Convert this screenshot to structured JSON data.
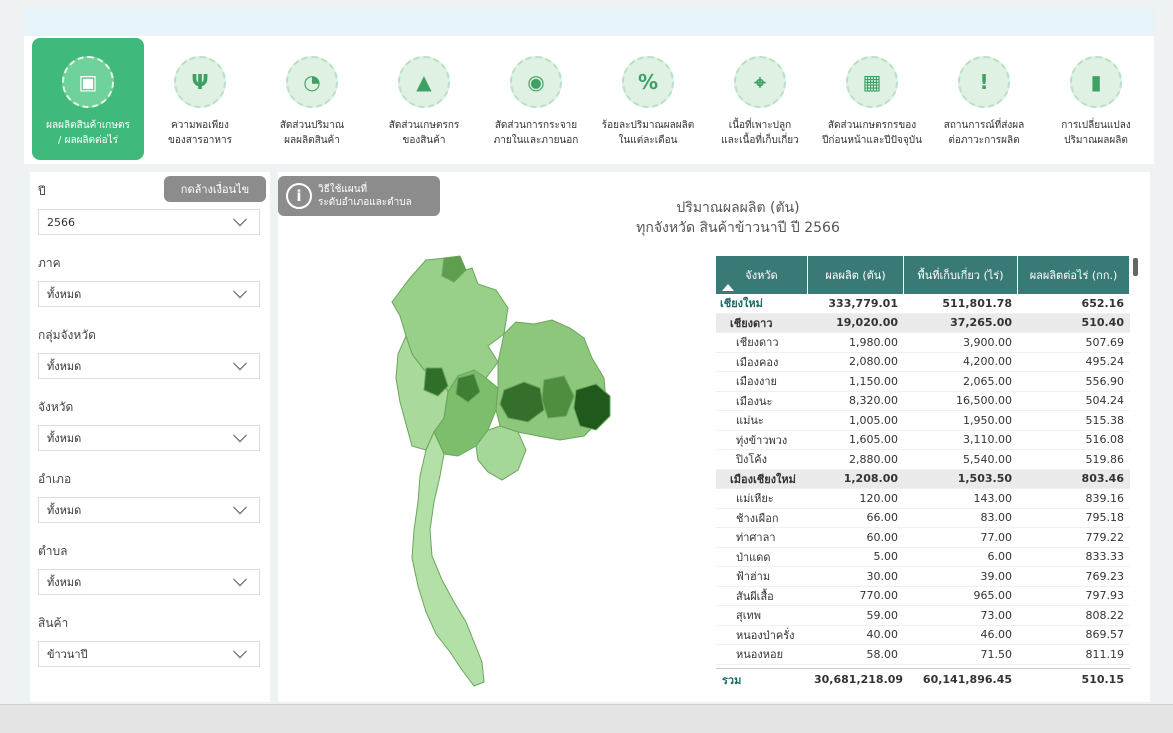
{
  "tabs": [
    {
      "line1": "ผลผลิตสินค้าเกษตร",
      "line2": "/ ผลผลิตต่อไร่",
      "icon": "agri-product-icon",
      "active": true
    },
    {
      "line1": "ความพอเพียง",
      "line2": "ของสารอาหาร",
      "icon": "fork-knife-icon",
      "active": false
    },
    {
      "line1": "สัดส่วนปริมาณ",
      "line2": "ผลผลิตสินค้า",
      "icon": "pie-chart-icon",
      "active": false
    },
    {
      "line1": "สัดส่วนเกษตรกร",
      "line2": "ของสินค้า",
      "icon": "farmer-icon",
      "active": false
    },
    {
      "line1": "สัดส่วนการกระจาย",
      "line2": "ภายในและภายนอก",
      "icon": "globe-pin-icon",
      "active": false
    },
    {
      "line1": "ร้อยละปริมาณผลผลิต",
      "line2": "ในแต่ละเดือน",
      "icon": "percent-icon",
      "active": false
    },
    {
      "line1": "เนื้อที่เพาะปลูก",
      "line2": "และเนื้อที่เก็บเกี่ยว",
      "icon": "map-pin-icon",
      "active": false
    },
    {
      "line1": "สัดส่วนเกษตรกรของ",
      "line2": "ปีก่อนหน้าและปีปัจจุบัน",
      "icon": "calendar-chart-icon",
      "active": false
    },
    {
      "line1": "สถานการณ์ที่ส่งผล",
      "line2": "ต่อภาวะการผลิต",
      "icon": "alert-message-icon",
      "active": false
    },
    {
      "line1": "การเปลี่ยนแปลง",
      "line2": "ปริมาณผลผลิต",
      "icon": "bar-trend-icon",
      "active": false
    }
  ],
  "sidebar": {
    "clear_label": "กดล้างเงื่อนไข",
    "filters": [
      {
        "label": "ปี",
        "value": "2566"
      },
      {
        "label": "ภาค",
        "value": "ทั้งหมด"
      },
      {
        "label": "กลุ่มจังหวัด",
        "value": "ทั้งหมด"
      },
      {
        "label": "จังหวัด",
        "value": "ทั้งหมด"
      },
      {
        "label": "อำเภอ",
        "value": "ทั้งหมด"
      },
      {
        "label": "ตำบล",
        "value": "ทั้งหมด"
      },
      {
        "label": "สินค้า",
        "value": "ข้าวนาปี"
      }
    ]
  },
  "help": {
    "line1": "วิธีใช้แผนที่",
    "line2": "ระดับอำเภอและตำบล"
  },
  "chart": {
    "title_line1": "ปริมาณผลผลิต (ตัน)",
    "title_line2": "ทุกจังหวัด สินค้าข้าวนาปี ปี 2566"
  },
  "table": {
    "headers": [
      "จังหวัด",
      "ผลผลิต (ตัน)",
      "พื้นที่เก็บเกี่ยว (ไร่)",
      "ผลผลิตต่อไร่ (กก.)"
    ],
    "rows": [
      {
        "level": 0,
        "name": "เชียงใหม่",
        "output": "333,779.01",
        "area": "511,801.78",
        "yield": "652.16"
      },
      {
        "level": 1,
        "name": "เชียงดาว",
        "output": "19,020.00",
        "area": "37,265.00",
        "yield": "510.40"
      },
      {
        "level": 2,
        "name": "เชียงดาว",
        "output": "1,980.00",
        "area": "3,900.00",
        "yield": "507.69"
      },
      {
        "level": 2,
        "name": "เมืองคอง",
        "output": "2,080.00",
        "area": "4,200.00",
        "yield": "495.24"
      },
      {
        "level": 2,
        "name": "เมืองงาย",
        "output": "1,150.00",
        "area": "2,065.00",
        "yield": "556.90"
      },
      {
        "level": 2,
        "name": "เมืองนะ",
        "output": "8,320.00",
        "area": "16,500.00",
        "yield": "504.24"
      },
      {
        "level": 2,
        "name": "แม่นะ",
        "output": "1,005.00",
        "area": "1,950.00",
        "yield": "515.38"
      },
      {
        "level": 2,
        "name": "ทุ่งข้าวพวง",
        "output": "1,605.00",
        "area": "3,110.00",
        "yield": "516.08"
      },
      {
        "level": 2,
        "name": "ปิงโค้ง",
        "output": "2,880.00",
        "area": "5,540.00",
        "yield": "519.86"
      },
      {
        "level": 1,
        "name": "เมืองเชียงใหม่",
        "output": "1,208.00",
        "area": "1,503.50",
        "yield": "803.46"
      },
      {
        "level": 2,
        "name": "แม่เหียะ",
        "output": "120.00",
        "area": "143.00",
        "yield": "839.16"
      },
      {
        "level": 2,
        "name": "ช้างเผือก",
        "output": "66.00",
        "area": "83.00",
        "yield": "795.18"
      },
      {
        "level": 2,
        "name": "ท่าศาลา",
        "output": "60.00",
        "area": "77.00",
        "yield": "779.22"
      },
      {
        "level": 2,
        "name": "ป่าแดด",
        "output": "5.00",
        "area": "6.00",
        "yield": "833.33"
      },
      {
        "level": 2,
        "name": "ฟ้าฮ่าม",
        "output": "30.00",
        "area": "39.00",
        "yield": "769.23"
      },
      {
        "level": 2,
        "name": "สันผีเสื้อ",
        "output": "770.00",
        "area": "965.00",
        "yield": "797.93"
      },
      {
        "level": 2,
        "name": "สุเทพ",
        "output": "59.00",
        "area": "73.00",
        "yield": "808.22"
      },
      {
        "level": 2,
        "name": "หนองป่าครั่ง",
        "output": "40.00",
        "area": "46.00",
        "yield": "869.57"
      },
      {
        "level": 2,
        "name": "หนองหอย",
        "output": "58.00",
        "area": "71.50",
        "yield": "811.19"
      }
    ],
    "total": {
      "label": "รวม",
      "output": "30,681,218.09",
      "area": "60,141,896.45",
      "yield": "510.15"
    }
  },
  "colors": {
    "accent": "#3fba7c",
    "table_header": "#3a7a76",
    "map_light": "#a8d89a",
    "map_dark": "#2f6f2a"
  }
}
